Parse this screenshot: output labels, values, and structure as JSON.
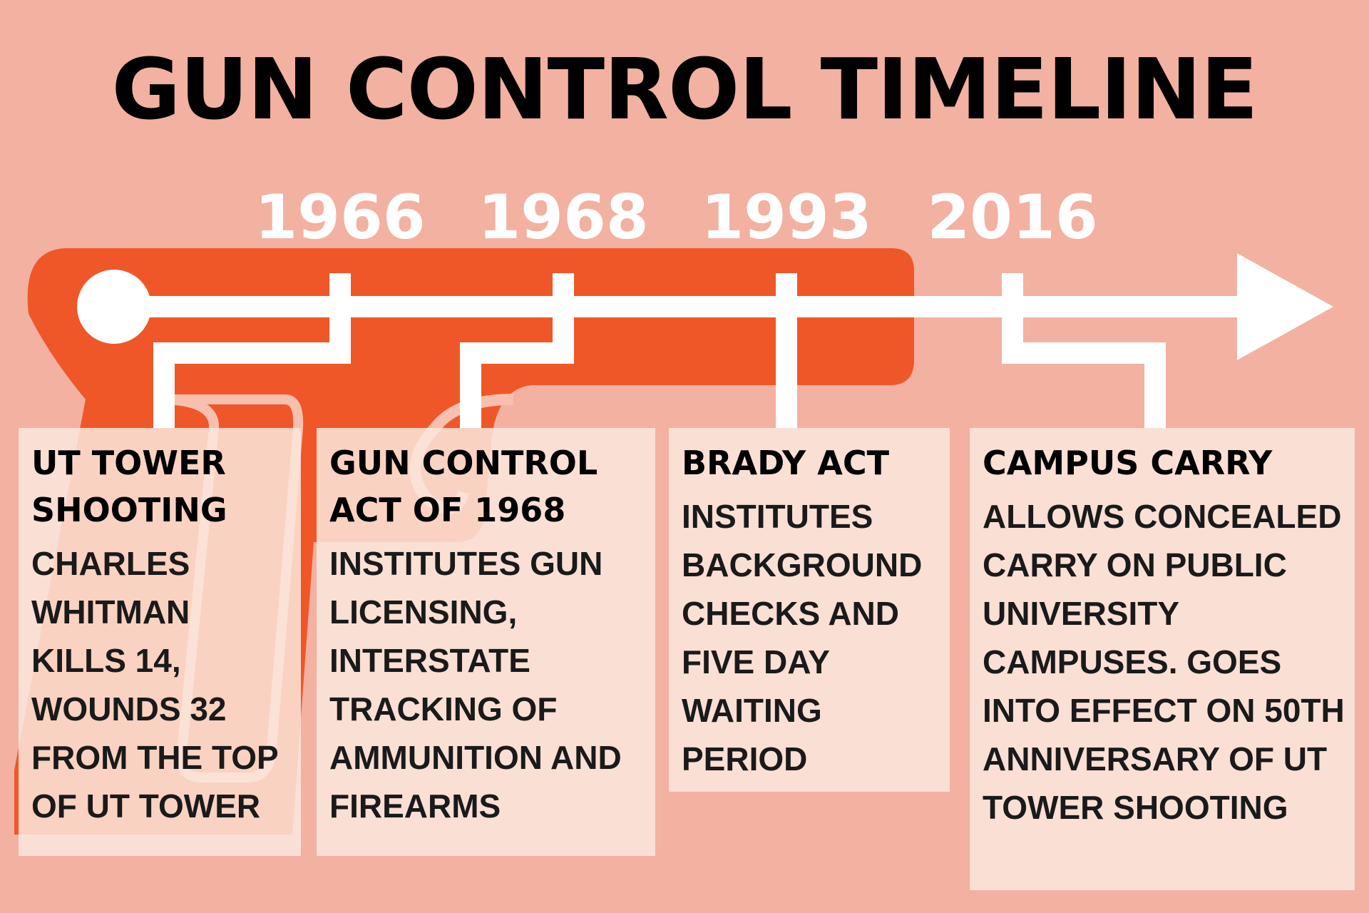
{
  "title": "GUN CONTROL TIMELINE",
  "colors": {
    "background": "#f2b1a1",
    "gun": "#ef5728",
    "timeline": "#ffffff",
    "card": "#fce6dc",
    "text": "#000000"
  },
  "icons": [
    "gun-silhouette",
    "timeline-arrow"
  ],
  "events": [
    {
      "year": "1966",
      "heading": "UT TOWER SHOOTING",
      "body": "CHARLES WHITMAN KILLS 14, WOUNDS 32 FROM THE TOP OF UT TOWER"
    },
    {
      "year": "1968",
      "heading": "GUN CONTROL ACT OF 1968",
      "body": "INSTITUTES GUN LICENSING, INTERSTATE TRACKING OF AMMUNITION AND FIREARMS"
    },
    {
      "year": "1993",
      "heading": "BRADY ACT",
      "body": "INSTITUTES BACKGROUND CHECKS AND FIVE DAY WAITING PERIOD"
    },
    {
      "year": "2016",
      "heading": "CAMPUS CARRY",
      "body": "ALLOWS CONCEALED CARRY ON PUBLIC UNIVERSITY CAMPUSES. GOES INTO EFFECT ON 50TH ANNIVERSARY OF UT TOWER SHOOTING"
    }
  ]
}
